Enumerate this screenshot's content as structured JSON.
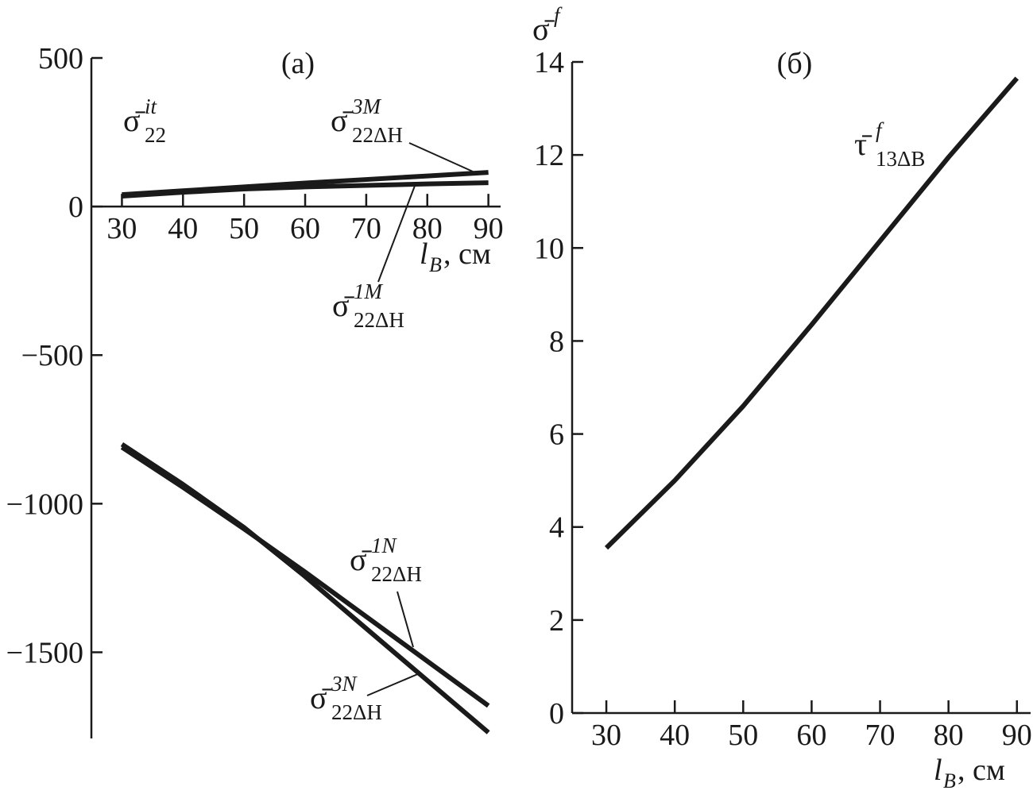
{
  "chart_data": [
    {
      "type": "line",
      "title": "(а)",
      "x": [
        30,
        40,
        50,
        60,
        70,
        80,
        90
      ],
      "xlim": [
        25,
        92
      ],
      "ylim": [
        -1790,
        500
      ],
      "xticks": [
        30,
        40,
        50,
        60,
        70,
        80,
        90
      ],
      "yticks": [
        500,
        0,
        {
          "value": -500,
          "label": "−500"
        },
        {
          "value": -1000,
          "label": "−1000"
        },
        {
          "value": -1500,
          "label": "−1500"
        }
      ],
      "y_label": "σ̄",
      "y_label_sup": "it",
      "y_label_sub": "22",
      "x_label": "l",
      "x_label_sub": "B",
      "x_label_unit": ", см",
      "series": [
        {
          "name": "σ̄",
          "sup": "3M",
          "sub": "22ΔH",
          "color": "#1a1a1a",
          "values": [
            40,
            53,
            66,
            79,
            91,
            103,
            115
          ]
        },
        {
          "name": "σ̄",
          "sup": "1M",
          "sub": "22ΔH",
          "color": "#1a1a1a",
          "values": [
            35,
            48,
            59,
            66,
            71,
            76,
            80
          ]
        },
        {
          "name": "σ̄",
          "sup": "1N",
          "sub": "22ΔH",
          "color": "#1a1a1a",
          "values": [
            -810,
            -945,
            -1085,
            -1230,
            -1380,
            -1530,
            -1680
          ]
        },
        {
          "name": "σ̄",
          "sup": "3N",
          "sub": "22ΔH",
          "color": "#1a1a1a",
          "values": [
            -800,
            -935,
            -1080,
            -1245,
            -1420,
            -1595,
            -1770
          ]
        }
      ]
    },
    {
      "type": "line",
      "title": "(б)",
      "x": [
        30,
        40,
        50,
        60,
        70,
        80,
        90
      ],
      "xlim": [
        25,
        92
      ],
      "ylim": [
        0,
        14
      ],
      "xticks": [
        30,
        40,
        50,
        60,
        70,
        80,
        90
      ],
      "yticks": [
        0,
        2,
        4,
        6,
        8,
        10,
        12,
        14
      ],
      "y_label": "σ̄",
      "y_label_sup": "f",
      "x_label": "l",
      "x_label_sub": "B",
      "x_label_unit": ", см",
      "series": [
        {
          "name": "τ̄",
          "sup": "f",
          "sub": "13ΔB",
          "color": "#1a1a1a",
          "values": [
            3.55,
            5.0,
            6.6,
            8.35,
            10.15,
            11.95,
            13.65
          ]
        }
      ]
    }
  ]
}
